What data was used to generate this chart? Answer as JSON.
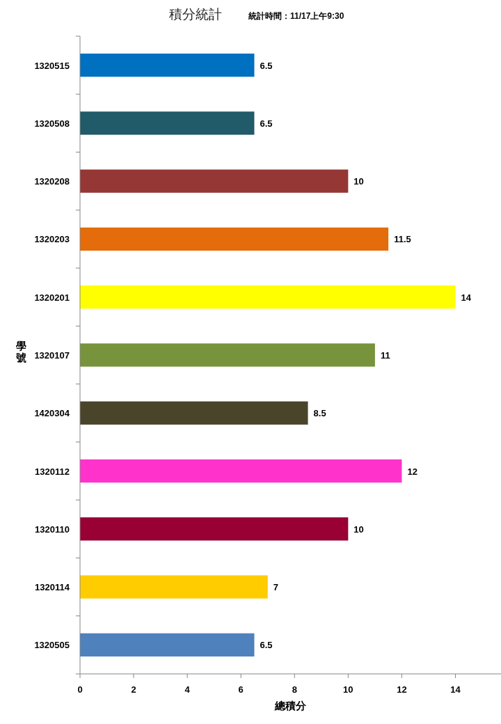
{
  "chart_data": {
    "type": "bar",
    "orientation": "horizontal",
    "title": "積分統計",
    "subtitle": "統計時間：11/17上午9:30",
    "xlabel": "總積分",
    "ylabel": "學號",
    "categories": [
      "1320515",
      "1320508",
      "1320208",
      "1320203",
      "1320201",
      "1320107",
      "1420304",
      "1320112",
      "1320110",
      "1320114",
      "1320505"
    ],
    "values": [
      6.5,
      6.5,
      10,
      11.5,
      14,
      11,
      8.5,
      12,
      10,
      7,
      6.5
    ],
    "colors": [
      "#0070c0",
      "#215a69",
      "#953735",
      "#e46c0a",
      "#ffff00",
      "#77933c",
      "#4a452a",
      "#ff33cc",
      "#990033",
      "#ffcc00",
      "#4f81bd"
    ],
    "xlim": [
      0,
      15.7
    ],
    "xticks": [
      0,
      2,
      4,
      6,
      8,
      10,
      12,
      14
    ],
    "data_labels": true
  }
}
